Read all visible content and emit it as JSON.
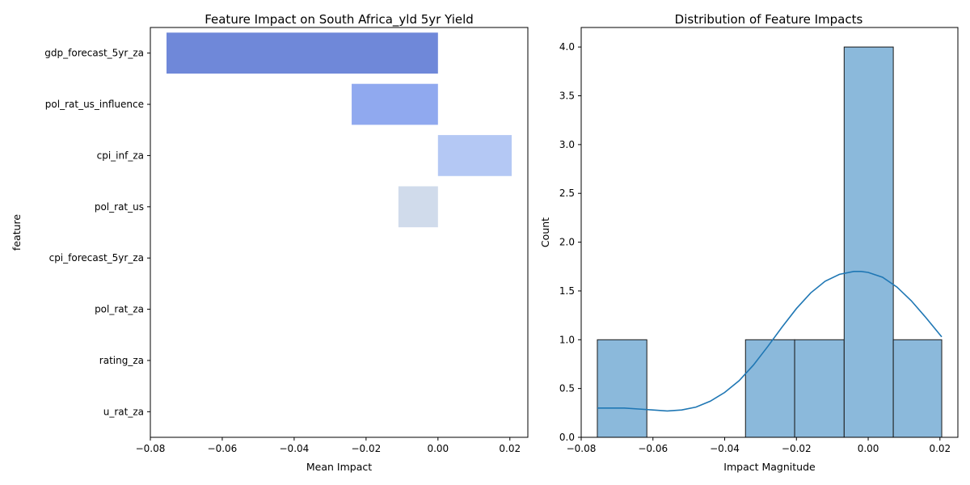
{
  "chart_data": [
    {
      "type": "bar",
      "orientation": "horizontal",
      "title": "Feature Impact on South Africa_yld 5yr Yield",
      "xlabel": "Mean Impact",
      "ylabel": "feature",
      "categories": [
        "gdp_forecast_5yr_za",
        "pol_rat_us_influence",
        "cpi_inf_za",
        "pol_rat_us",
        "cpi_forecast_5yr_za",
        "pol_rat_za",
        "rating_za",
        "u_rat_za"
      ],
      "values": [
        -0.0755,
        -0.024,
        0.0205,
        -0.011,
        0.0,
        0.0,
        0.0,
        0.0
      ],
      "colors": [
        "#6f88d9",
        "#90a9ef",
        "#b4c8f4",
        "#d0dbeb",
        "#d8d8d8",
        "#e0cfc4",
        "#ebb89e",
        "#f29f80"
      ],
      "xlim": [
        -0.08,
        0.025
      ],
      "xticks": [
        -0.08,
        -0.06,
        -0.04,
        -0.02,
        0.0,
        0.02
      ],
      "xtick_labels": [
        "−0.08",
        "−0.06",
        "−0.04",
        "−0.02",
        "0.00",
        "0.02"
      ],
      "grid": false
    },
    {
      "type": "histogram",
      "title": "Distribution of Feature Impacts",
      "xlabel": "Impact Magnitude",
      "ylabel": "Count",
      "bin_edges": [
        -0.0755,
        -0.0617,
        -0.048,
        -0.0342,
        -0.0205,
        -0.0067,
        0.007,
        0.0205
      ],
      "counts": [
        1,
        0,
        0,
        1,
        1,
        4,
        1
      ],
      "bar_color": "#8bb9db",
      "edge_color": "#1a1a1a",
      "kde": {
        "color": "#1f77b4",
        "x": [
          -0.0755,
          -0.072,
          -0.068,
          -0.064,
          -0.06,
          -0.056,
          -0.052,
          -0.048,
          -0.044,
          -0.04,
          -0.036,
          -0.032,
          -0.028,
          -0.024,
          -0.02,
          -0.016,
          -0.012,
          -0.008,
          -0.004,
          -0.002,
          0.0,
          0.004,
          0.008,
          0.012,
          0.016,
          0.0205
        ],
        "y": [
          0.3,
          0.3,
          0.3,
          0.29,
          0.28,
          0.27,
          0.28,
          0.31,
          0.37,
          0.46,
          0.58,
          0.74,
          0.93,
          1.13,
          1.32,
          1.48,
          1.6,
          1.67,
          1.7,
          1.7,
          1.69,
          1.64,
          1.54,
          1.4,
          1.23,
          1.03
        ]
      },
      "xlim": [
        -0.08,
        0.025
      ],
      "ylim": [
        0,
        4.2
      ],
      "xticks": [
        -0.08,
        -0.06,
        -0.04,
        -0.02,
        0.0,
        0.02
      ],
      "xtick_labels": [
        "−0.08",
        "−0.06",
        "−0.04",
        "−0.02",
        "0.00",
        "0.02"
      ],
      "yticks": [
        0,
        0.5,
        1.0,
        1.5,
        2.0,
        2.5,
        3.0,
        3.5,
        4.0
      ],
      "ytick_labels": [
        "0.0",
        "0.5",
        "1.0",
        "1.5",
        "2.0",
        "2.5",
        "3.0",
        "3.5",
        "4.0"
      ],
      "grid": false
    }
  ]
}
